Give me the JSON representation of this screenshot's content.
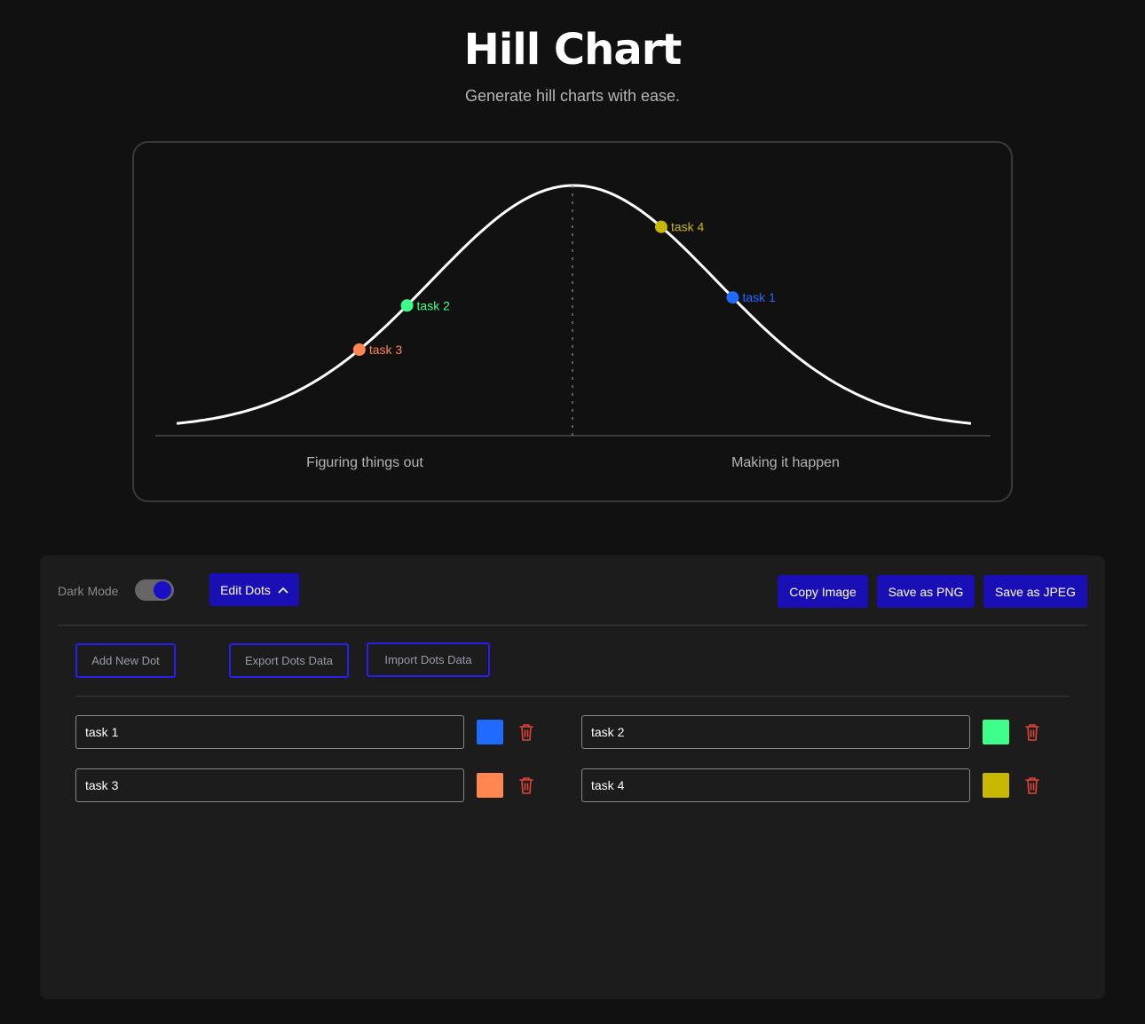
{
  "header": {
    "title": "Hill Chart",
    "subtitle": "Generate hill charts with ease."
  },
  "chart_data": {
    "type": "hill",
    "labels": {
      "left": "Figuring things out",
      "right": "Making it happen"
    },
    "points": [
      {
        "name": "task 1",
        "progress": 70,
        "color": "#1f6bff"
      },
      {
        "name": "task 2",
        "progress": 29,
        "color": "#3dff8a"
      },
      {
        "name": "task 3",
        "progress": 23,
        "color": "#ff8650"
      },
      {
        "name": "task 4",
        "progress": 61,
        "color": "#c9b800"
      }
    ]
  },
  "controls": {
    "dark_mode_label": "Dark Mode",
    "dark_mode_on": true,
    "edit_dots_label": "Edit Dots",
    "copy_image_label": "Copy Image",
    "save_png_label": "Save as PNG",
    "save_jpeg_label": "Save as JPEG",
    "add_dot_label": "Add New Dot",
    "export_label": "Export Dots Data",
    "import_label": "Import Dots Data"
  },
  "dots": [
    {
      "name": "task 1",
      "color": "#1f6bff"
    },
    {
      "name": "task 2",
      "color": "#3dff8a"
    },
    {
      "name": "task 3",
      "color": "#ff8650"
    },
    {
      "name": "task 4",
      "color": "#c9b800"
    }
  ],
  "colors": {
    "accent": "#1a0fb4",
    "delete": "#e0453a"
  }
}
